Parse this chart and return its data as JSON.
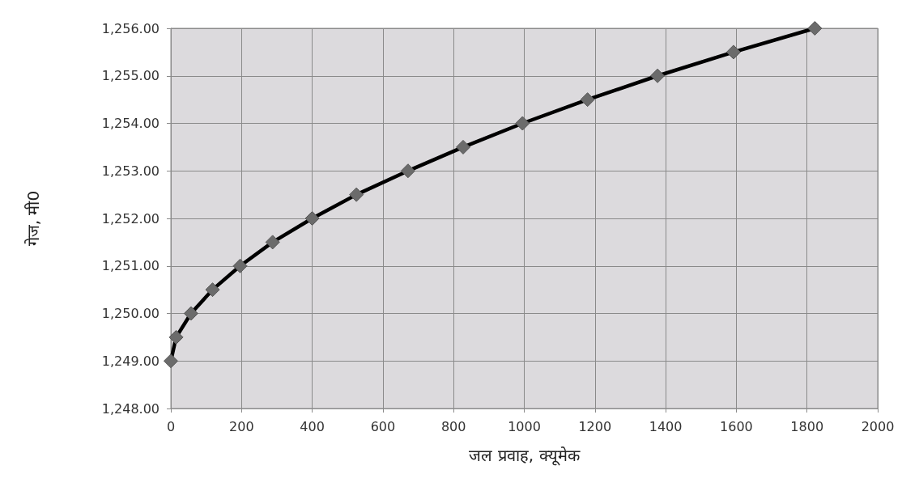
{
  "chart_data": {
    "type": "line",
    "xlabel": "जल प्रवाह, क्यूमेक",
    "ylabel": "गेज, मी0",
    "x": [
      0,
      15,
      57,
      118,
      196,
      288,
      400,
      525,
      671,
      827,
      995,
      1179,
      1377,
      1592,
      1822
    ],
    "series": [
      {
        "color": "#000000",
        "values": [
          1249.0,
          1249.5,
          1250.0,
          1250.5,
          1251.0,
          1251.5,
          1252.0,
          1252.5,
          1253.0,
          1253.5,
          1254.0,
          1254.5,
          1255.0,
          1255.5,
          1256.0
        ]
      }
    ],
    "xlim": [
      0,
      2000
    ],
    "xticks": [
      0,
      200,
      400,
      600,
      800,
      1000,
      1200,
      1400,
      1600,
      1800,
      2000
    ],
    "ylim": [
      1248,
      1256
    ],
    "yticks": [
      {
        "value": 1248,
        "label": "1,248.00"
      },
      {
        "value": 1249,
        "label": "1,249.00"
      },
      {
        "value": 1250,
        "label": "1,250.00"
      },
      {
        "value": 1251,
        "label": "1,251.00"
      },
      {
        "value": 1252,
        "label": "1,252.00"
      },
      {
        "value": 1253,
        "label": "1,253.00"
      },
      {
        "value": 1254,
        "label": "1,254.00"
      },
      {
        "value": 1255,
        "label": "1,255.00"
      },
      {
        "value": 1256,
        "label": "1,256.00"
      }
    ],
    "grid": true,
    "marker": "diamond",
    "line_style": "solid"
  }
}
